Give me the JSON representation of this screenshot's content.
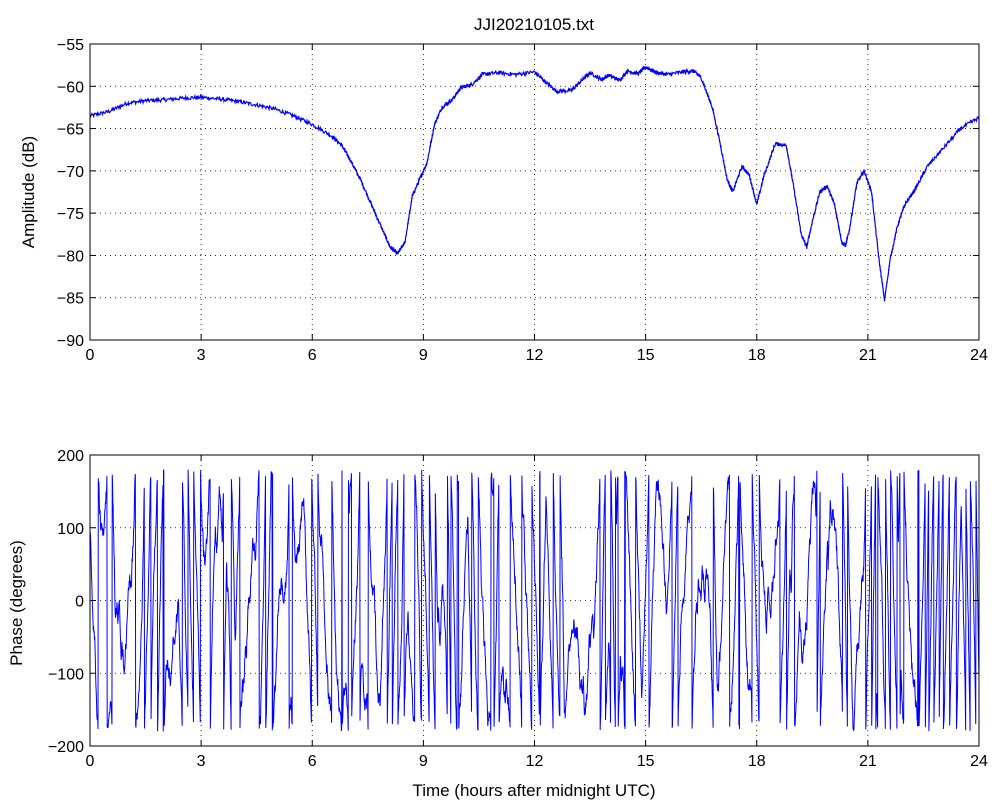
{
  "figure": {
    "title": "JJI20210105.txt",
    "line_color": "#0000ff"
  },
  "chart_data": [
    {
      "type": "line",
      "title": "JJI20210105.txt",
      "xlabel": "",
      "ylabel": "Amplitude (dB)",
      "xlim": [
        0,
        24
      ],
      "ylim": [
        -90,
        -55
      ],
      "xticks": [
        0,
        3,
        6,
        9,
        12,
        15,
        18,
        21,
        24
      ],
      "yticks": [
        -90,
        -85,
        -80,
        -75,
        -70,
        -65,
        -60,
        -55
      ],
      "grid": true,
      "x": [
        0,
        0.5,
        1,
        1.5,
        2,
        2.5,
        3,
        3.5,
        4,
        4.5,
        5,
        5.5,
        6,
        6.5,
        6.8,
        7,
        7.3,
        7.6,
        7.9,
        8.1,
        8.3,
        8.5,
        8.7,
        8.9,
        9.1,
        9.3,
        9.5,
        9.8,
        10,
        10.3,
        10.6,
        11,
        11.5,
        12,
        12.3,
        12.6,
        13,
        13.3,
        13.5,
        13.8,
        14,
        14.3,
        14.5,
        14.8,
        15,
        15.3,
        15.6,
        16,
        16.3,
        16.5,
        16.8,
        17,
        17.2,
        17.35,
        17.6,
        17.8,
        18,
        18.2,
        18.5,
        18.8,
        19,
        19.2,
        19.35,
        19.5,
        19.7,
        19.9,
        20.1,
        20.3,
        20.4,
        20.5,
        20.7,
        20.9,
        21.1,
        21.3,
        21.45,
        21.6,
        21.8,
        22,
        22.3,
        22.6,
        23,
        23.5,
        24
      ],
      "y": [
        -63.5,
        -63,
        -62,
        -61.7,
        -61.6,
        -61.4,
        -61.3,
        -61.5,
        -61.8,
        -62.2,
        -62.7,
        -63.5,
        -64.5,
        -65.8,
        -67,
        -68.5,
        -71,
        -74,
        -77,
        -79,
        -79.8,
        -78.5,
        -73,
        -71,
        -69,
        -64.5,
        -62.5,
        -61.5,
        -60.2,
        -59.8,
        -58.6,
        -58.4,
        -58.6,
        -58.3,
        -59.5,
        -60.6,
        -60.5,
        -59.2,
        -58.4,
        -59.2,
        -58.7,
        -59.3,
        -58.2,
        -58.5,
        -57.7,
        -58.4,
        -58.6,
        -58.3,
        -58.2,
        -59,
        -62.5,
        -66.5,
        -71,
        -72.5,
        -69.5,
        -70.5,
        -74,
        -70.5,
        -66.8,
        -67,
        -72,
        -77.5,
        -79,
        -76,
        -72.5,
        -71.8,
        -74,
        -78.5,
        -78.8,
        -77,
        -71.5,
        -70,
        -72.5,
        -80.5,
        -85.3,
        -80.5,
        -76.5,
        -74,
        -72,
        -69.5,
        -67.5,
        -65,
        -63.7
      ],
      "series": [
        {
          "color": "#0000ff"
        }
      ]
    },
    {
      "type": "line",
      "title": "",
      "xlabel": "Time (hours after midnight UTC)",
      "ylabel": "Phase (degrees)",
      "xlim": [
        0,
        24
      ],
      "ylim": [
        -200,
        200
      ],
      "xticks": [
        0,
        3,
        6,
        9,
        12,
        15,
        18,
        21,
        24
      ],
      "yticks": [
        -200,
        -100,
        0,
        100,
        200
      ],
      "grid": true,
      "range": [
        -180,
        180
      ],
      "n_points": 3000,
      "series": [
        {
          "color": "#0000ff"
        }
      ]
    }
  ]
}
